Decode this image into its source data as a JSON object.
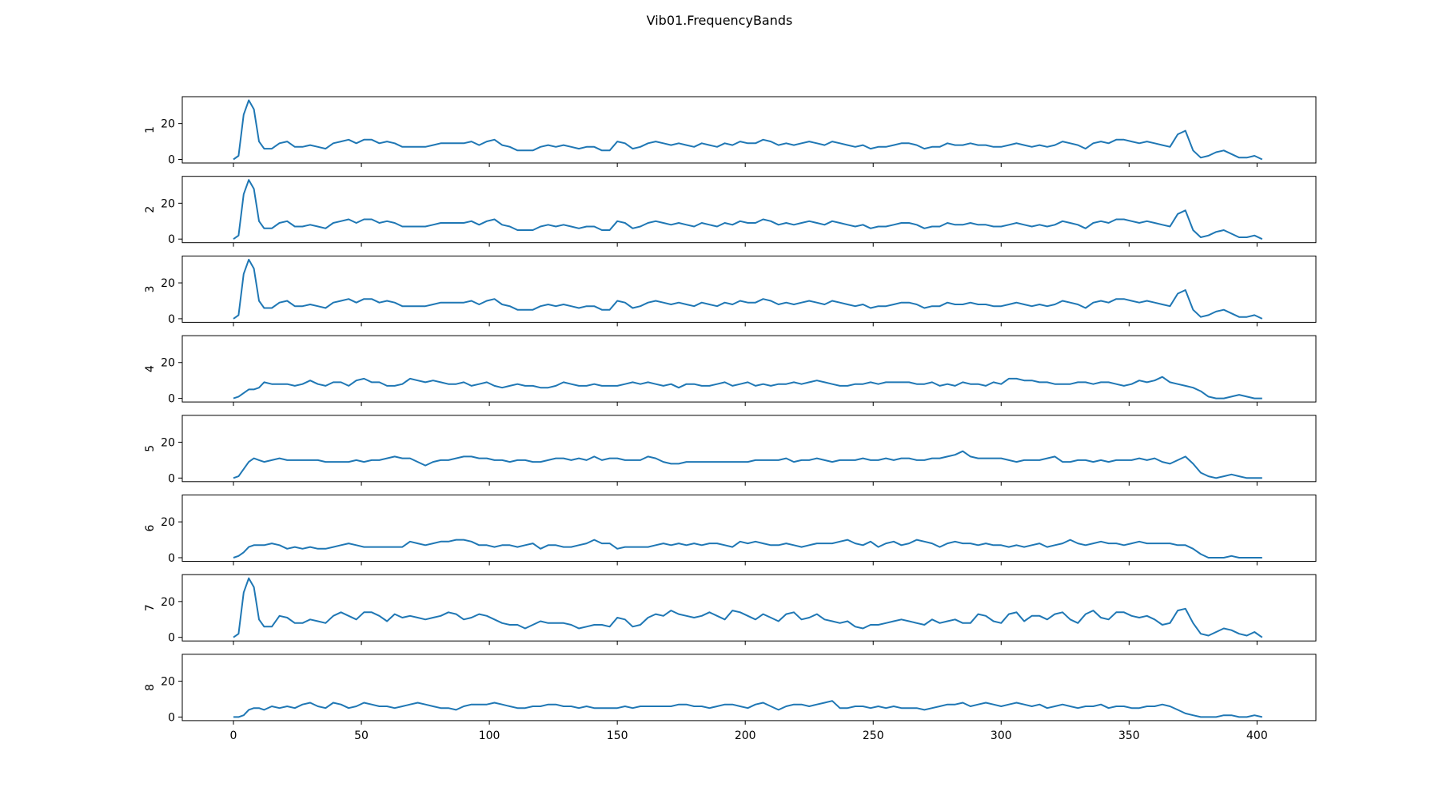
{
  "chart_data": {
    "type": "line",
    "title": "Vib01.FrequencyBands",
    "line_color": "#1f77b4",
    "xlim": [
      -20,
      423
    ],
    "ylim": [
      -2,
      35
    ],
    "xticks": [
      0,
      50,
      100,
      150,
      200,
      250,
      300,
      350,
      400
    ],
    "yticks": [
      0,
      20
    ],
    "grid": false,
    "x": [
      0,
      2,
      4,
      6,
      8,
      10,
      12,
      15,
      18,
      21,
      24,
      27,
      30,
      33,
      36,
      39,
      42,
      45,
      48,
      51,
      54,
      57,
      60,
      63,
      66,
      69,
      72,
      75,
      78,
      81,
      84,
      87,
      90,
      93,
      96,
      99,
      102,
      105,
      108,
      111,
      114,
      117,
      120,
      123,
      126,
      129,
      132,
      135,
      138,
      141,
      144,
      147,
      150,
      153,
      156,
      159,
      162,
      165,
      168,
      171,
      174,
      177,
      180,
      183,
      186,
      189,
      192,
      195,
      198,
      201,
      204,
      207,
      210,
      213,
      216,
      219,
      222,
      225,
      228,
      231,
      234,
      237,
      240,
      243,
      246,
      249,
      252,
      255,
      258,
      261,
      264,
      267,
      270,
      273,
      276,
      279,
      282,
      285,
      288,
      291,
      294,
      297,
      300,
      303,
      306,
      309,
      312,
      315,
      318,
      321,
      324,
      327,
      330,
      333,
      336,
      339,
      342,
      345,
      348,
      351,
      354,
      357,
      360,
      363,
      366,
      369,
      372,
      375,
      378,
      381,
      384,
      387,
      390,
      393,
      396,
      399,
      402
    ],
    "series": [
      {
        "name": "1",
        "values": [
          0,
          2,
          25,
          33,
          28,
          10,
          6,
          6,
          9,
          10,
          7,
          7,
          8,
          7,
          6,
          9,
          10,
          11,
          9,
          11,
          11,
          9,
          10,
          9,
          7,
          7,
          7,
          7,
          8,
          9,
          9,
          9,
          9,
          10,
          8,
          10,
          11,
          8,
          7,
          5,
          5,
          5,
          7,
          8,
          7,
          8,
          7,
          6,
          7,
          7,
          5,
          5,
          10,
          9,
          6,
          7,
          9,
          10,
          9,
          8,
          9,
          8,
          7,
          9,
          8,
          7,
          9,
          8,
          10,
          9,
          9,
          11,
          10,
          8,
          9,
          8,
          9,
          10,
          9,
          8,
          10,
          9,
          8,
          7,
          8,
          6,
          7,
          7,
          8,
          9,
          9,
          8,
          6,
          7,
          7,
          9,
          8,
          8,
          9,
          8,
          8,
          7,
          7,
          8,
          9,
          8,
          7,
          8,
          7,
          8,
          10,
          9,
          8,
          6,
          9,
          10,
          9,
          11,
          11,
          10,
          9,
          10,
          9,
          8,
          7,
          14,
          16,
          5,
          1,
          2,
          4,
          5,
          3,
          1,
          1,
          2,
          0
        ]
      },
      {
        "name": "2",
        "values": [
          0,
          2,
          25,
          33,
          28,
          10,
          6,
          6,
          9,
          10,
          7,
          7,
          8,
          7,
          6,
          9,
          10,
          11,
          9,
          11,
          11,
          9,
          10,
          9,
          7,
          7,
          7,
          7,
          8,
          9,
          9,
          9,
          9,
          10,
          8,
          10,
          11,
          8,
          7,
          5,
          5,
          5,
          7,
          8,
          7,
          8,
          7,
          6,
          7,
          7,
          5,
          5,
          10,
          9,
          6,
          7,
          9,
          10,
          9,
          8,
          9,
          8,
          7,
          9,
          8,
          7,
          9,
          8,
          10,
          9,
          9,
          11,
          10,
          8,
          9,
          8,
          9,
          10,
          9,
          8,
          10,
          9,
          8,
          7,
          8,
          6,
          7,
          7,
          8,
          9,
          9,
          8,
          6,
          7,
          7,
          9,
          8,
          8,
          9,
          8,
          8,
          7,
          7,
          8,
          9,
          8,
          7,
          8,
          7,
          8,
          10,
          9,
          8,
          6,
          9,
          10,
          9,
          11,
          11,
          10,
          9,
          10,
          9,
          8,
          7,
          14,
          16,
          5,
          1,
          2,
          4,
          5,
          3,
          1,
          1,
          2,
          0
        ]
      },
      {
        "name": "3",
        "values": [
          0,
          2,
          25,
          33,
          28,
          10,
          6,
          6,
          9,
          10,
          7,
          7,
          8,
          7,
          6,
          9,
          10,
          11,
          9,
          11,
          11,
          9,
          10,
          9,
          7,
          7,
          7,
          7,
          8,
          9,
          9,
          9,
          9,
          10,
          8,
          10,
          11,
          8,
          7,
          5,
          5,
          5,
          7,
          8,
          7,
          8,
          7,
          6,
          7,
          7,
          5,
          5,
          10,
          9,
          6,
          7,
          9,
          10,
          9,
          8,
          9,
          8,
          7,
          9,
          8,
          7,
          9,
          8,
          10,
          9,
          9,
          11,
          10,
          8,
          9,
          8,
          9,
          10,
          9,
          8,
          10,
          9,
          8,
          7,
          8,
          6,
          7,
          7,
          8,
          9,
          9,
          8,
          6,
          7,
          7,
          9,
          8,
          8,
          9,
          8,
          8,
          7,
          7,
          8,
          9,
          8,
          7,
          8,
          7,
          8,
          10,
          9,
          8,
          6,
          9,
          10,
          9,
          11,
          11,
          10,
          9,
          10,
          9,
          8,
          7,
          14,
          16,
          5,
          1,
          2,
          4,
          5,
          3,
          1,
          1,
          2,
          0
        ]
      },
      {
        "name": "4",
        "values": [
          0,
          1,
          3,
          5,
          5,
          6,
          9,
          8,
          8,
          8,
          7,
          8,
          10,
          8,
          7,
          9,
          9,
          7,
          10,
          11,
          9,
          9,
          7,
          7,
          8,
          11,
          10,
          9,
          10,
          9,
          8,
          8,
          9,
          7,
          8,
          9,
          7,
          6,
          7,
          8,
          7,
          7,
          6,
          6,
          7,
          9,
          8,
          7,
          7,
          8,
          7,
          7,
          7,
          8,
          9,
          8,
          9,
          8,
          7,
          8,
          6,
          8,
          8,
          7,
          7,
          8,
          9,
          7,
          8,
          9,
          7,
          8,
          7,
          8,
          8,
          9,
          8,
          9,
          10,
          9,
          8,
          7,
          7,
          8,
          8,
          9,
          8,
          9,
          9,
          9,
          9,
          8,
          8,
          9,
          7,
          8,
          7,
          9,
          8,
          8,
          7,
          9,
          8,
          11,
          11,
          10,
          10,
          9,
          9,
          8,
          8,
          8,
          9,
          9,
          8,
          9,
          9,
          8,
          7,
          8,
          10,
          9,
          10,
          12,
          9,
          8,
          7,
          6,
          4,
          1,
          0,
          0,
          1,
          2,
          1,
          0,
          0
        ]
      },
      {
        "name": "5",
        "values": [
          0,
          1,
          5,
          9,
          11,
          10,
          9,
          10,
          11,
          10,
          10,
          10,
          10,
          10,
          9,
          9,
          9,
          9,
          10,
          9,
          10,
          10,
          11,
          12,
          11,
          11,
          9,
          7,
          9,
          10,
          10,
          11,
          12,
          12,
          11,
          11,
          10,
          10,
          9,
          10,
          10,
          9,
          9,
          10,
          11,
          11,
          10,
          11,
          10,
          12,
          10,
          11,
          11,
          10,
          10,
          10,
          12,
          11,
          9,
          8,
          8,
          9,
          9,
          9,
          9,
          9,
          9,
          9,
          9,
          9,
          10,
          10,
          10,
          10,
          11,
          9,
          10,
          10,
          11,
          10,
          9,
          10,
          10,
          10,
          11,
          10,
          10,
          11,
          10,
          11,
          11,
          10,
          10,
          11,
          11,
          12,
          13,
          15,
          12,
          11,
          11,
          11,
          11,
          10,
          9,
          10,
          10,
          10,
          11,
          12,
          9,
          9,
          10,
          10,
          9,
          10,
          9,
          10,
          10,
          10,
          11,
          10,
          11,
          9,
          8,
          10,
          12,
          8,
          3,
          1,
          0,
          1,
          2,
          1,
          0,
          0,
          0
        ]
      },
      {
        "name": "6",
        "values": [
          0,
          1,
          3,
          6,
          7,
          7,
          7,
          8,
          7,
          5,
          6,
          5,
          6,
          5,
          5,
          6,
          7,
          8,
          7,
          6,
          6,
          6,
          6,
          6,
          6,
          9,
          8,
          7,
          8,
          9,
          9,
          10,
          10,
          9,
          7,
          7,
          6,
          7,
          7,
          6,
          7,
          8,
          5,
          7,
          7,
          6,
          6,
          7,
          8,
          10,
          8,
          8,
          5,
          6,
          6,
          6,
          6,
          7,
          8,
          7,
          8,
          7,
          8,
          7,
          8,
          8,
          7,
          6,
          9,
          8,
          9,
          8,
          7,
          7,
          8,
          7,
          6,
          7,
          8,
          8,
          8,
          9,
          10,
          8,
          7,
          9,
          6,
          8,
          9,
          7,
          8,
          10,
          9,
          8,
          6,
          8,
          9,
          8,
          8,
          7,
          8,
          7,
          7,
          6,
          7,
          6,
          7,
          8,
          6,
          7,
          8,
          10,
          8,
          7,
          8,
          9,
          8,
          8,
          7,
          8,
          9,
          8,
          8,
          8,
          8,
          7,
          7,
          5,
          2,
          0,
          0,
          0,
          1,
          0,
          0,
          0,
          0
        ]
      },
      {
        "name": "7",
        "values": [
          0,
          2,
          25,
          33,
          28,
          10,
          6,
          6,
          12,
          11,
          8,
          8,
          10,
          9,
          8,
          12,
          14,
          12,
          10,
          14,
          14,
          12,
          9,
          13,
          11,
          12,
          11,
          10,
          11,
          12,
          14,
          13,
          10,
          11,
          13,
          12,
          10,
          8,
          7,
          7,
          5,
          7,
          9,
          8,
          8,
          8,
          7,
          5,
          6,
          7,
          7,
          6,
          11,
          10,
          6,
          7,
          11,
          13,
          12,
          15,
          13,
          12,
          11,
          12,
          14,
          12,
          10,
          15,
          14,
          12,
          10,
          13,
          11,
          9,
          13,
          14,
          10,
          11,
          13,
          10,
          9,
          8,
          9,
          6,
          5,
          7,
          7,
          8,
          9,
          10,
          9,
          8,
          7,
          10,
          8,
          9,
          10,
          8,
          8,
          13,
          12,
          9,
          8,
          13,
          14,
          9,
          12,
          12,
          10,
          13,
          14,
          10,
          8,
          13,
          15,
          11,
          10,
          14,
          14,
          12,
          11,
          12,
          10,
          7,
          8,
          15,
          16,
          8,
          2,
          1,
          3,
          5,
          4,
          2,
          1,
          3,
          0
        ]
      },
      {
        "name": "8",
        "values": [
          0,
          0,
          1,
          4,
          5,
          5,
          4,
          6,
          5,
          6,
          5,
          7,
          8,
          6,
          5,
          8,
          7,
          5,
          6,
          8,
          7,
          6,
          6,
          5,
          6,
          7,
          8,
          7,
          6,
          5,
          5,
          4,
          6,
          7,
          7,
          7,
          8,
          7,
          6,
          5,
          5,
          6,
          6,
          7,
          7,
          6,
          6,
          5,
          6,
          5,
          5,
          5,
          5,
          6,
          5,
          6,
          6,
          6,
          6,
          6,
          7,
          7,
          6,
          6,
          5,
          6,
          7,
          7,
          6,
          5,
          7,
          8,
          6,
          4,
          6,
          7,
          7,
          6,
          7,
          8,
          9,
          5,
          5,
          6,
          6,
          5,
          6,
          5,
          6,
          5,
          5,
          5,
          4,
          5,
          6,
          7,
          7,
          8,
          6,
          7,
          8,
          7,
          6,
          7,
          8,
          7,
          6,
          7,
          5,
          6,
          7,
          6,
          5,
          6,
          6,
          7,
          5,
          6,
          6,
          5,
          5,
          6,
          6,
          7,
          6,
          4,
          2,
          1,
          0,
          0,
          0,
          1,
          1,
          0,
          0,
          1,
          0
        ]
      }
    ]
  }
}
